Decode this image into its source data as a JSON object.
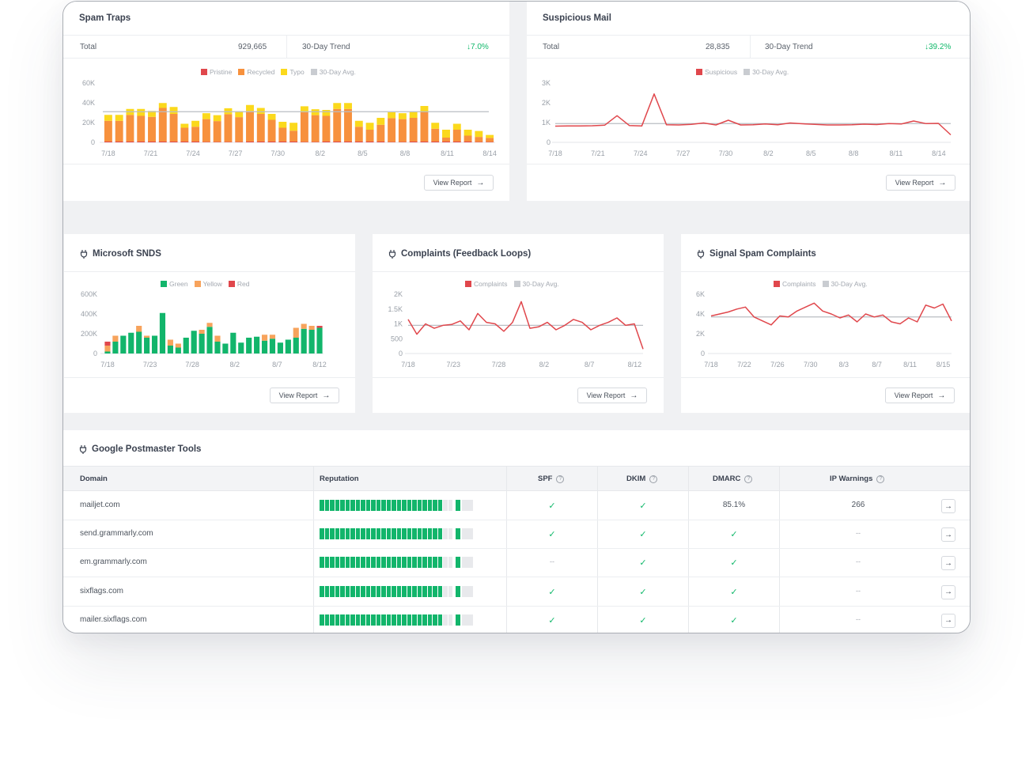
{
  "colors": {
    "pristine": "#e0474c",
    "recycled": "#f7913d",
    "typo": "#fbd91c",
    "avg": "#c9ccd1",
    "suspicious": "#e0474c",
    "green": "#12b56b",
    "yellow": "#f7a35c",
    "red": "#e0474c",
    "trend_up": "#10b86a"
  },
  "spam_traps": {
    "title": "Spam Traps",
    "total_label": "Total",
    "total_value": "929,665",
    "trend_label": "30-Day Trend",
    "trend_value": "7.0%",
    "legend": [
      "Pristine",
      "Recycled",
      "Typo",
      "30-Day Avg."
    ],
    "view_report": "View Report"
  },
  "suspicious_mail": {
    "title": "Suspicious Mail",
    "total_label": "Total",
    "total_value": "28,835",
    "trend_label": "30-Day Trend",
    "trend_value": "39.2%",
    "legend": [
      "Suspicious",
      "30-Day Avg."
    ],
    "view_report": "View Report"
  },
  "snds": {
    "title": "Microsoft SNDS",
    "legend": [
      "Green",
      "Yellow",
      "Red"
    ],
    "view_report": "View Report"
  },
  "complaints": {
    "title": "Complaints (Feedback Loops)",
    "legend": [
      "Complaints",
      "30-Day Avg."
    ],
    "view_report": "View Report"
  },
  "signal_spam": {
    "title": "Signal Spam Complaints",
    "legend": [
      "Complaints",
      "30-Day Avg."
    ],
    "view_report": "View Report"
  },
  "postmaster": {
    "title": "Google Postmaster Tools",
    "columns": [
      "Domain",
      "Reputation",
      "SPF",
      "DKIM",
      "DMARC",
      "IP Warnings"
    ],
    "rows": [
      {
        "domain": "mailjet.com",
        "reputation": 0.92,
        "spf": "✓",
        "dkim": "✓",
        "dmarc": "85.1%",
        "ip_warnings": "266"
      },
      {
        "domain": "send.grammarly.com",
        "reputation": 0.92,
        "spf": "✓",
        "dkim": "✓",
        "dmarc": "✓",
        "ip_warnings": "--"
      },
      {
        "domain": "em.grammarly.com",
        "reputation": 0.92,
        "spf": "--",
        "dkim": "✓",
        "dmarc": "✓",
        "ip_warnings": "--"
      },
      {
        "domain": "sixflags.com",
        "reputation": 0.92,
        "spf": "✓",
        "dkim": "✓",
        "dmarc": "✓",
        "ip_warnings": "--"
      },
      {
        "domain": "mailer.sixflags.com",
        "reputation": 0.92,
        "spf": "✓",
        "dkim": "✓",
        "dmarc": "✓",
        "ip_warnings": "--"
      }
    ]
  },
  "chart_data": [
    {
      "type": "bar",
      "title": "Spam Traps",
      "stacked": true,
      "yticks": [
        "0",
        "20K",
        "40K",
        "60K"
      ],
      "ylim": [
        0,
        60000
      ],
      "xticks": [
        "7/18",
        "7/21",
        "7/24",
        "7/27",
        "7/30",
        "8/2",
        "8/5",
        "8/8",
        "8/11",
        "8/14"
      ],
      "avg": 31000,
      "series": [
        {
          "name": "Pristine",
          "values": [
            800,
            800,
            800,
            800,
            800,
            800,
            800,
            800,
            800,
            500,
            500,
            500,
            500,
            800,
            800,
            800,
            800,
            800,
            500,
            500,
            800,
            800,
            800,
            800,
            800,
            800,
            500,
            500,
            800,
            800,
            800,
            800,
            800,
            800,
            500,
            500
          ]
        },
        {
          "name": "Recycled",
          "values": [
            21000,
            21000,
            27000,
            26000,
            25000,
            34000,
            28000,
            14000,
            15000,
            23000,
            21000,
            28000,
            25000,
            31000,
            28000,
            22000,
            14000,
            11000,
            30000,
            27000,
            26000,
            33000,
            33000,
            15000,
            12000,
            17000,
            24000,
            23000,
            24000,
            30000,
            13000,
            4000,
            12000,
            6000,
            5000,
            4000
          ]
        },
        {
          "name": "Typo",
          "values": [
            6000,
            6000,
            6000,
            7000,
            6000,
            5000,
            7000,
            4000,
            6000,
            6000,
            6000,
            6000,
            6000,
            6000,
            6000,
            6000,
            6000,
            8000,
            6000,
            6000,
            6000,
            6000,
            6000,
            6000,
            7000,
            7000,
            6000,
            6000,
            6000,
            6000,
            6000,
            8000,
            6000,
            6000,
            6000,
            3000
          ]
        }
      ]
    },
    {
      "type": "line",
      "title": "Suspicious Mail",
      "yticks": [
        "0",
        "1K",
        "2K",
        "3K"
      ],
      "ylim": [
        0,
        3000
      ],
      "xticks": [
        "7/18",
        "7/21",
        "7/24",
        "7/27",
        "7/30",
        "8/2",
        "8/5",
        "8/8",
        "8/11",
        "8/14"
      ],
      "avg": 950,
      "series": [
        {
          "name": "Suspicious",
          "values": [
            820,
            830,
            830,
            840,
            870,
            1350,
            850,
            830,
            2450,
            890,
            880,
            910,
            980,
            880,
            1120,
            880,
            890,
            930,
            890,
            980,
            940,
            910,
            880,
            880,
            890,
            920,
            900,
            950,
            930,
            1080,
            950,
            960,
            380
          ]
        }
      ]
    },
    {
      "type": "bar",
      "title": "Microsoft SNDS",
      "stacked": true,
      "yticks": [
        "0",
        "200K",
        "400K",
        "600K"
      ],
      "ylim": [
        0,
        600000
      ],
      "xticks": [
        "7/18",
        "7/23",
        "7/28",
        "8/2",
        "8/7",
        "8/12"
      ],
      "series": [
        {
          "name": "Green",
          "values": [
            20000,
            120000,
            180000,
            210000,
            220000,
            160000,
            180000,
            410000,
            80000,
            60000,
            160000,
            230000,
            200000,
            270000,
            120000,
            100000,
            210000,
            110000,
            160000,
            170000,
            130000,
            150000,
            110000,
            140000,
            160000,
            250000,
            240000,
            260000
          ]
        },
        {
          "name": "Yellow",
          "values": [
            60000,
            60000,
            0,
            0,
            60000,
            20000,
            0,
            0,
            60000,
            40000,
            0,
            0,
            40000,
            40000,
            60000,
            0,
            0,
            0,
            0,
            0,
            60000,
            40000,
            0,
            0,
            100000,
            50000,
            40000,
            0
          ]
        },
        {
          "name": "Red",
          "values": [
            40000,
            0,
            0,
            0,
            0,
            0,
            0,
            0,
            0,
            0,
            0,
            0,
            0,
            0,
            0,
            0,
            0,
            0,
            0,
            0,
            0,
            0,
            0,
            0,
            0,
            0,
            0,
            20000
          ]
        }
      ]
    },
    {
      "type": "line",
      "title": "Complaints (Feedback Loops)",
      "yticks": [
        "0",
        "500",
        "1K",
        "1.5K",
        "2K"
      ],
      "ylim": [
        0,
        2000
      ],
      "xticks": [
        "7/18",
        "7/23",
        "7/28",
        "8/2",
        "8/7",
        "8/12"
      ],
      "avg": 950,
      "series": [
        {
          "name": "Complaints",
          "values": [
            1150,
            650,
            1000,
            850,
            950,
            980,
            1100,
            800,
            1350,
            1050,
            1000,
            750,
            1050,
            1750,
            850,
            900,
            1050,
            800,
            950,
            1150,
            1050,
            800,
            950,
            1050,
            1200,
            950,
            1000,
            150
          ]
        }
      ]
    },
    {
      "type": "line",
      "title": "Signal Spam Complaints",
      "yticks": [
        "0",
        "2K",
        "4K",
        "6K"
      ],
      "ylim": [
        0,
        6000
      ],
      "xticks": [
        "7/18",
        "7/22",
        "7/26",
        "7/30",
        "8/3",
        "8/7",
        "8/11",
        "8/15"
      ],
      "avg": 3700,
      "series": [
        {
          "name": "Complaints",
          "values": [
            3800,
            4000,
            4200,
            4500,
            4700,
            3700,
            3300,
            2900,
            3800,
            3700,
            4300,
            4700,
            5100,
            4300,
            4000,
            3600,
            3900,
            3200,
            4000,
            3700,
            3900,
            3200,
            3000,
            3600,
            3200,
            4900,
            4600,
            5000,
            3300
          ]
        }
      ]
    }
  ]
}
